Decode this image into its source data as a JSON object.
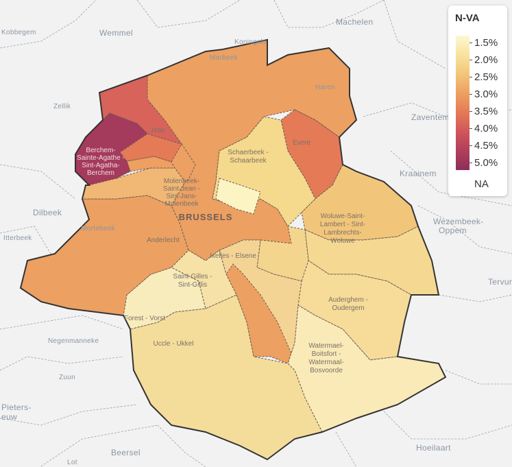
{
  "legend": {
    "title": "N-VA",
    "ticks": [
      "1.5%",
      "2.0%",
      "2.5%",
      "3.0%",
      "3.5%",
      "4.0%",
      "4.5%",
      "5.0%"
    ],
    "na_label": "NA",
    "color_scale": [
      "#fdf8d3",
      "#f8e39e",
      "#f2c67a",
      "#eca061",
      "#e57a56",
      "#d1555a",
      "#b13e5c",
      "#8d2e5b"
    ]
  },
  "city_label": "BRUSSELS",
  "basemap_labels": [
    "Kobbegem",
    "Wemmel",
    "Machelen",
    "Koningslo",
    "Haren",
    "Zellik",
    "Zaventem",
    "Kraainem",
    "Dilbeek",
    "Wezembeek-",
    "Oppem",
    "Itterbeek",
    "Tervuren",
    "Negenmanneke",
    "Zuun",
    "Pieters-",
    "euw",
    "Beersel",
    "Lot",
    "Hoeilaart",
    "Marbeek",
    "Mortebeek"
  ],
  "municipalities": [
    {
      "label": [
        "Schaerbeek -",
        "Schaarbeek"
      ],
      "value": 2.3
    },
    {
      "label": [
        "Evere"
      ],
      "value": 3.8
    },
    {
      "label": [
        "Woluwe-Saint-",
        "Lambert - Sint-",
        "Lambrechts-",
        "Woluwe"
      ],
      "value": 2.5
    },
    {
      "label": [
        "Auderghem -",
        "Oudergem"
      ],
      "value": 2.2
    },
    {
      "label": [
        "Watermael-",
        "Boitsfort -",
        "Watermaal-",
        "Bosvoorde"
      ],
      "value": 1.8
    },
    {
      "label": [
        "Uccle - Ukkel"
      ],
      "value": 2.3
    },
    {
      "label": [
        "Forest - Vorst"
      ],
      "value": 1.9
    },
    {
      "label": [
        "Saint-Gilles -",
        "Sint-Gillis"
      ],
      "value": 2.0
    },
    {
      "label": [
        "Ixelles - Elsene"
      ],
      "value": 2.1
    },
    {
      "label": [
        "Anderlecht"
      ],
      "value": 3.4
    },
    {
      "label": [
        "Molenbeek-",
        "Saint-Jean -",
        "Sint-Jans-",
        "Molenbeek"
      ],
      "value": 2.8
    },
    {
      "label": [
        "Jette"
      ],
      "value": 4.1
    },
    {
      "label": [
        "Berchem-",
        "Sainte-Agathe -",
        "Sint-Agatha-",
        "Berchem"
      ],
      "value": 4.9
    },
    {
      "label": [
        "BRUSSELS"
      ],
      "value": 3.4
    }
  ]
}
